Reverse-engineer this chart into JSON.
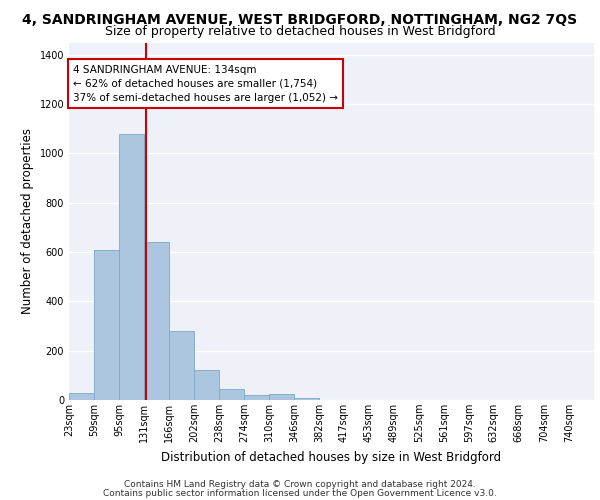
{
  "title": "4, SANDRINGHAM AVENUE, WEST BRIDGFORD, NOTTINGHAM, NG2 7QS",
  "subtitle": "Size of property relative to detached houses in West Bridgford",
  "xlabel": "Distribution of detached houses by size in West Bridgford",
  "ylabel": "Number of detached properties",
  "footer1": "Contains HM Land Registry data © Crown copyright and database right 2024.",
  "footer2": "Contains public sector information licensed under the Open Government Licence v3.0.",
  "annotation_line1": "4 SANDRINGHAM AVENUE: 134sqm",
  "annotation_line2": "← 62% of detached houses are smaller (1,754)",
  "annotation_line3": "37% of semi-detached houses are larger (1,052) →",
  "bar_color": "#adc6e0",
  "bar_edge_color": "#7aa8cc",
  "vline_x": 134,
  "vline_color": "#cc0000",
  "categories": [
    "23sqm",
    "59sqm",
    "95sqm",
    "131sqm",
    "166sqm",
    "202sqm",
    "238sqm",
    "274sqm",
    "310sqm",
    "346sqm",
    "382sqm",
    "417sqm",
    "453sqm",
    "489sqm",
    "525sqm",
    "561sqm",
    "597sqm",
    "632sqm",
    "668sqm",
    "704sqm",
    "740sqm"
  ],
  "bin_edges": [
    23,
    59,
    95,
    131,
    166,
    202,
    238,
    274,
    310,
    346,
    382,
    417,
    453,
    489,
    525,
    561,
    597,
    632,
    668,
    704,
    740
  ],
  "bar_heights": [
    30,
    610,
    1080,
    640,
    280,
    120,
    45,
    20,
    25,
    10,
    0,
    0,
    0,
    0,
    0,
    0,
    0,
    0,
    0,
    0,
    0
  ],
  "ylim": [
    0,
    1450
  ],
  "yticks": [
    0,
    200,
    400,
    600,
    800,
    1000,
    1200,
    1400
  ],
  "plot_bg_color": "#eef2f8",
  "title_fontsize": 10,
  "subtitle_fontsize": 9,
  "axis_label_fontsize": 8.5,
  "tick_fontsize": 7,
  "footer_fontsize": 6.5,
  "ann_fontsize": 7.5
}
